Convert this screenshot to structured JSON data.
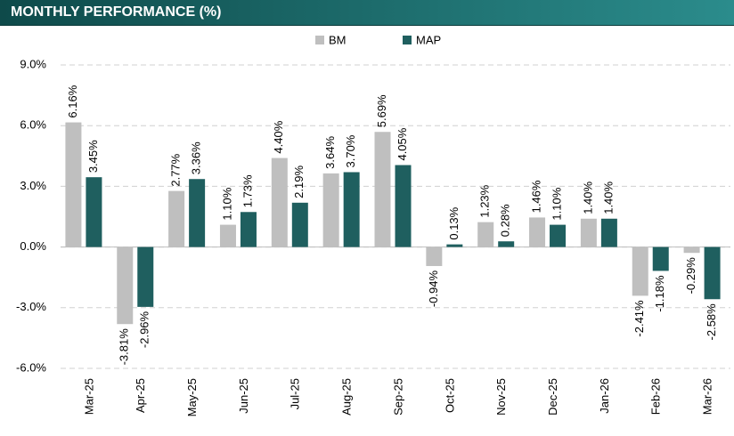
{
  "chart_data": {
    "type": "bar",
    "title": "MONTHLY PERFORMANCE (%)",
    "categories": [
      "Mar-25",
      "Apr-25",
      "May-25",
      "Jun-25",
      "Jul-25",
      "Aug-25",
      "Sep-25",
      "Oct-25",
      "Nov-25",
      "Dec-25",
      "Jan-26",
      "Feb-26",
      "Mar-26"
    ],
    "series": [
      {
        "name": "BM",
        "color": "#bfbfbf",
        "values": [
          6.16,
          -3.81,
          2.77,
          1.1,
          4.4,
          3.64,
          5.69,
          -0.94,
          1.23,
          1.46,
          1.4,
          -2.41,
          -0.29
        ],
        "value_labels": [
          "6.16%",
          "-3.81%",
          "2.77%",
          "1.10%",
          "4.40%",
          "3.64%",
          "5.69%",
          "-0.94%",
          "1.23%",
          "1.46%",
          "1.40%",
          "-2.41%",
          "-0.29%"
        ]
      },
      {
        "name": "MAP",
        "color": "#1f5f5f",
        "values": [
          3.45,
          -2.96,
          3.36,
          1.73,
          2.19,
          3.7,
          4.05,
          0.13,
          0.28,
          1.1,
          1.4,
          -1.18,
          -2.58
        ],
        "value_labels": [
          "3.45%",
          "-2.96%",
          "3.36%",
          "1.73%",
          "2.19%",
          "3.70%",
          "4.05%",
          "0.13%",
          "0.28%",
          "1.10%",
          "1.40%",
          "-1.18%",
          "-2.58%"
        ]
      }
    ],
    "ylim": [
      -6,
      9
    ],
    "yticks": [
      {
        "value": -6,
        "label": "-6.0%"
      },
      {
        "value": -3,
        "label": "-3.0%"
      },
      {
        "value": 0,
        "label": "0.0%"
      },
      {
        "value": 3,
        "label": "3.0%"
      },
      {
        "value": 6,
        "label": "6.0%"
      },
      {
        "value": 9,
        "label": "9.0%"
      }
    ],
    "grid": true,
    "legend": "top"
  }
}
